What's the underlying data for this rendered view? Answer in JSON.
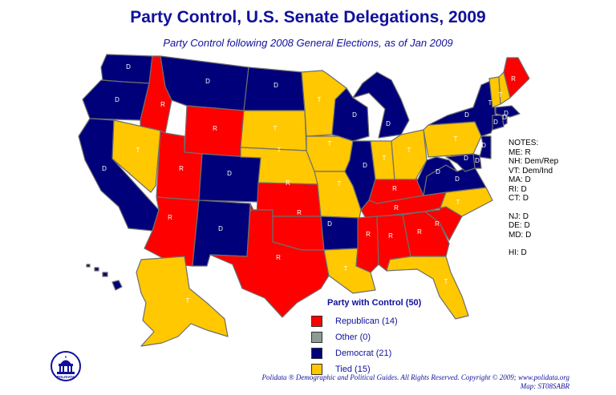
{
  "title": "Party Control, U.S. Senate Delegations, 2009",
  "subtitle": "Party Control following 2008 General Elections, as of Jan 2009",
  "colors": {
    "republican": "#ff0000",
    "other": "#8c9c90",
    "democrat": "#00007a",
    "tied": "#ffc800",
    "border": "#6e6e6e",
    "text": "#10109c"
  },
  "legend": {
    "title": "Party with Control (50)",
    "items": [
      {
        "label": "Republican (14)",
        "party": "R"
      },
      {
        "label": "Other (0)",
        "party": "O"
      },
      {
        "label": "Democrat (21)",
        "party": "D"
      },
      {
        "label": "Tied (15)",
        "party": "T"
      }
    ]
  },
  "notes": {
    "heading": "NOTES:",
    "lines": [
      "ME: R",
      "NH: Dem/Rep",
      "VT: Dem/Ind",
      "MA: D",
      "RI: D",
      "CT: D"
    ],
    "lines2": [
      "NJ: D",
      "DE: D",
      "MD: D"
    ],
    "lines3": [
      "HI: D"
    ]
  },
  "footer": {
    "line1": "Polidata ® Demographic and Political Guides. All Rights Reserved. Copyright © 2009; www.polidata.org",
    "line2": "Map: ST08SABR"
  },
  "logo_text": "POLIDATA",
  "states": [
    {
      "id": "WA",
      "party": "D"
    },
    {
      "id": "OR",
      "party": "D"
    },
    {
      "id": "CA",
      "party": "D"
    },
    {
      "id": "ID",
      "party": "R"
    },
    {
      "id": "NV",
      "party": "T"
    },
    {
      "id": "MT",
      "party": "D"
    },
    {
      "id": "WY",
      "party": "R"
    },
    {
      "id": "UT",
      "party": "R"
    },
    {
      "id": "AZ",
      "party": "R"
    },
    {
      "id": "CO",
      "party": "D"
    },
    {
      "id": "NM",
      "party": "D"
    },
    {
      "id": "ND",
      "party": "D"
    },
    {
      "id": "SD",
      "party": "T"
    },
    {
      "id": "NE",
      "party": "T"
    },
    {
      "id": "KS",
      "party": "R"
    },
    {
      "id": "OK",
      "party": "R"
    },
    {
      "id": "TX",
      "party": "R"
    },
    {
      "id": "MN",
      "party": "T"
    },
    {
      "id": "IA",
      "party": "T"
    },
    {
      "id": "MO",
      "party": "T"
    },
    {
      "id": "AR",
      "party": "D"
    },
    {
      "id": "LA",
      "party": "T"
    },
    {
      "id": "WI",
      "party": "D"
    },
    {
      "id": "IL",
      "party": "D"
    },
    {
      "id": "MI",
      "party": "D"
    },
    {
      "id": "IN",
      "party": "T"
    },
    {
      "id": "OH",
      "party": "T"
    },
    {
      "id": "KY",
      "party": "R"
    },
    {
      "id": "TN",
      "party": "R"
    },
    {
      "id": "MS",
      "party": "R"
    },
    {
      "id": "AL",
      "party": "R"
    },
    {
      "id": "GA",
      "party": "R"
    },
    {
      "id": "FL",
      "party": "T"
    },
    {
      "id": "SC",
      "party": "R"
    },
    {
      "id": "NC",
      "party": "T"
    },
    {
      "id": "VA",
      "party": "D"
    },
    {
      "id": "WV",
      "party": "D"
    },
    {
      "id": "PA",
      "party": "T"
    },
    {
      "id": "NY",
      "party": "D"
    },
    {
      "id": "VT",
      "party": "T"
    },
    {
      "id": "NH",
      "party": "T"
    },
    {
      "id": "ME",
      "party": "R"
    },
    {
      "id": "MA",
      "party": "D"
    },
    {
      "id": "CT",
      "party": "D"
    },
    {
      "id": "RI",
      "party": "D"
    },
    {
      "id": "NJ",
      "party": "D"
    },
    {
      "id": "DE",
      "party": "D"
    },
    {
      "id": "MD",
      "party": "D"
    },
    {
      "id": "AK",
      "party": "T"
    },
    {
      "id": "HI",
      "party": "D"
    }
  ]
}
